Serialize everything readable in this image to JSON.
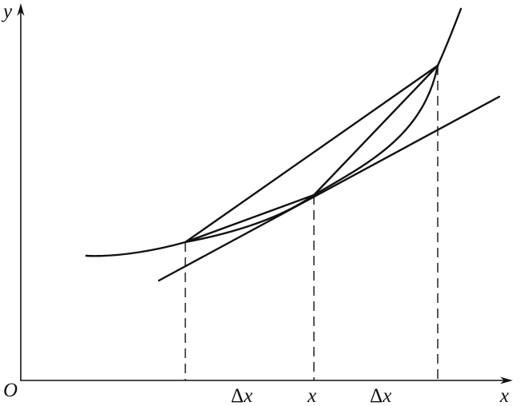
{
  "axes": {
    "y_label": "y",
    "x_label": "x",
    "origin_label": "O"
  },
  "tick_labels": {
    "left_delta": "Δx",
    "center": "x",
    "right_delta": "Δx"
  },
  "colors": {
    "ink": "#111111",
    "background": "#ffffff"
  }
}
